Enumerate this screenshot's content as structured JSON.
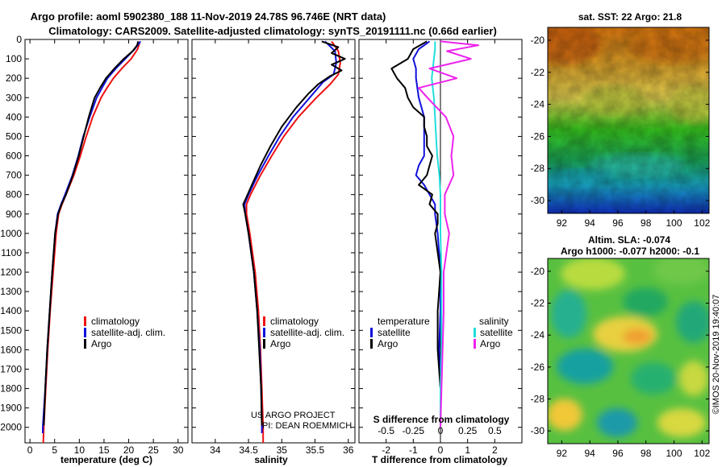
{
  "titles": {
    "line1": "Argo profile: aoml 5902380_188 11-Nov-2019 24.78S 96.746E (NRT data)",
    "line2": "Climatology: CARS2009. Satellite-adjusted climatology: synTS_20191111.nc (0.66d earlier)"
  },
  "credits": {
    "project": "US ARGO PROJECT",
    "pi": "PI: DEAN ROEMMICH",
    "imos": "©IMOS 20-Nov-2019 19:40:07"
  },
  "colors": {
    "climatology": "#ee1111",
    "satellite": "#1111dd",
    "argo": "#000000",
    "satellite_s": "#22dddd",
    "argo_s": "#ee22ee"
  },
  "chart_data": [
    {
      "id": "temperature",
      "type": "line",
      "xlabel": "temperature (deg C)",
      "ylabel": "",
      "xlim": [
        -1,
        32
      ],
      "ylim": [
        2080,
        0
      ],
      "xticks": [
        0,
        5,
        10,
        15,
        20,
        25,
        30
      ],
      "yticks": [
        0,
        100,
        200,
        300,
        400,
        500,
        600,
        700,
        800,
        900,
        1000,
        1100,
        1200,
        1300,
        1400,
        1500,
        1600,
        1700,
        1800,
        1900,
        2000
      ],
      "legend": [
        "climatology",
        "satellite-adj. clim.",
        "Argo"
      ],
      "series": [
        {
          "name": "climatology",
          "color": "#ee1111",
          "depth": [
            10,
            50,
            100,
            150,
            200,
            250,
            300,
            400,
            500,
            600,
            700,
            800,
            850,
            900,
            1000,
            1200,
            1400,
            1600,
            1800,
            2000,
            2080
          ],
          "values": [
            22.3,
            21.8,
            20.5,
            18.6,
            16.9,
            15.6,
            14.4,
            12.7,
            11.4,
            10.2,
            8.9,
            7.3,
            6.5,
            5.8,
            5.3,
            4.7,
            4.1,
            3.6,
            3.2,
            2.8,
            2.7
          ]
        },
        {
          "name": "satellite-adj. clim.",
          "color": "#1111dd",
          "depth": [
            10,
            50,
            100,
            150,
            200,
            250,
            300,
            400,
            500,
            600,
            700,
            800,
            850,
            900,
            1000,
            1200,
            1400,
            1600,
            1800,
            2000,
            2030
          ],
          "values": [
            22.4,
            21.2,
            19.3,
            17.4,
            15.7,
            14.6,
            13.5,
            12.1,
            10.8,
            9.8,
            8.6,
            7.1,
            6.3,
            5.6,
            5.1,
            4.5,
            4.0,
            3.5,
            3.1,
            2.6,
            2.6
          ]
        },
        {
          "name": "Argo",
          "color": "#000000",
          "depth": [
            10,
            30,
            60,
            100,
            150,
            200,
            250,
            300,
            350,
            400,
            500,
            600,
            700,
            800,
            850,
            900,
            1000,
            1200,
            1400,
            1600,
            1800,
            1990
          ],
          "values": [
            21.9,
            21.7,
            20.8,
            19.0,
            17.1,
            15.4,
            14.2,
            13.1,
            12.5,
            11.9,
            10.9,
            9.9,
            8.7,
            7.3,
            6.4,
            5.7,
            5.1,
            4.5,
            4.0,
            3.5,
            3.1,
            2.8
          ]
        }
      ]
    },
    {
      "id": "salinity",
      "type": "line",
      "xlabel": "salinity",
      "ylabel": "",
      "xlim": [
        33.65,
        36.1
      ],
      "ylim": [
        2080,
        0
      ],
      "xticks": [
        34,
        34.5,
        35,
        35.5,
        36
      ],
      "xticklabels": [
        "34",
        "34.5",
        "35",
        "35.5",
        "36"
      ],
      "legend": [
        "climatology",
        "satellite-adj. clim.",
        "Argo"
      ],
      "series": [
        {
          "name": "climatology",
          "color": "#ee1111",
          "depth": [
            10,
            60,
            120,
            180,
            230,
            300,
            400,
            500,
            600,
            700,
            800,
            850,
            900,
            1000,
            1200,
            1400,
            1600,
            1800,
            2000,
            2080
          ],
          "values": [
            35.75,
            35.85,
            35.88,
            35.85,
            35.73,
            35.52,
            35.25,
            35.03,
            34.85,
            34.68,
            34.53,
            34.47,
            34.47,
            34.52,
            34.6,
            34.65,
            34.68,
            34.7,
            34.72,
            34.72
          ]
        },
        {
          "name": "satellite-adj. clim.",
          "color": "#1111dd",
          "depth": [
            10,
            60,
            120,
            180,
            220,
            300,
            400,
            500,
            600,
            700,
            800,
            850,
            900,
            1000,
            1200,
            1400,
            1600,
            1800,
            2000,
            2030
          ],
          "values": [
            35.65,
            35.8,
            35.82,
            35.78,
            35.62,
            35.42,
            35.17,
            34.97,
            34.8,
            34.64,
            34.5,
            34.44,
            34.45,
            34.5,
            34.58,
            34.63,
            34.67,
            34.69,
            34.7,
            34.7
          ]
        },
        {
          "name": "Argo",
          "color": "#000000",
          "depth": [
            10,
            40,
            70,
            100,
            130,
            160,
            190,
            230,
            280,
            350,
            450,
            550,
            650,
            750,
            820,
            850,
            900,
            1000,
            1200,
            1400,
            1600,
            1800,
            1990
          ],
          "values": [
            35.6,
            35.85,
            35.75,
            35.95,
            35.75,
            35.9,
            35.72,
            35.55,
            35.4,
            35.22,
            35.0,
            34.83,
            34.68,
            34.55,
            34.46,
            34.42,
            34.45,
            34.5,
            34.58,
            34.63,
            34.66,
            34.69,
            34.7
          ]
        }
      ]
    },
    {
      "id": "differences",
      "type": "line",
      "xlabel": "T difference from climatology",
      "xlabel_top": "S difference from climatology",
      "xlim": [
        -3,
        3
      ],
      "ylim": [
        2080,
        0
      ],
      "xticks": [
        -2,
        -1,
        0,
        1,
        2
      ],
      "xticklabels": [
        "-2",
        "-1",
        "0",
        "1",
        "2"
      ],
      "sticks": [
        -0.5,
        -0.25,
        0,
        0.25,
        0.5
      ],
      "sticklabels": [
        "-0.5",
        "-0.25",
        "0",
        "0.25",
        "0.5"
      ],
      "legend_titles": {
        "left": "temperature",
        "right": "salinity"
      },
      "legend": [
        "satellite",
        "Argo",
        "satellite",
        "Argo"
      ],
      "series": [
        {
          "name": "T satellite",
          "color": "#1111dd",
          "depth": [
            10,
            50,
            100,
            150,
            200,
            300,
            400,
            500,
            600,
            650,
            700,
            750,
            800,
            850,
            900,
            1000,
            1200,
            1400,
            1600,
            1800,
            2000
          ],
          "values": [
            -0.4,
            -0.8,
            -1.0,
            -0.9,
            -0.9,
            -0.8,
            -0.6,
            -0.6,
            -0.6,
            -0.8,
            -0.9,
            -0.6,
            -0.4,
            -0.2,
            -0.2,
            -0.1,
            0.0,
            0.0,
            -0.05,
            0.0,
            0.0
          ]
        },
        {
          "name": "T Argo",
          "color": "#000000",
          "depth": [
            10,
            50,
            100,
            150,
            200,
            250,
            300,
            350,
            400,
            450,
            500,
            550,
            600,
            650,
            700,
            750,
            800,
            850,
            900,
            950,
            1000,
            1200,
            1400,
            1600,
            1800,
            2000
          ],
          "values": [
            -0.5,
            -1.0,
            -1.2,
            -1.8,
            -1.6,
            -1.3,
            -1.2,
            -1.0,
            -0.6,
            -0.6,
            -0.5,
            -0.5,
            -0.3,
            -0.4,
            -0.5,
            -0.8,
            -0.3,
            -0.4,
            -0.1,
            -0.1,
            -0.2,
            0.0,
            -0.1,
            -0.1,
            0.0,
            0.0
          ]
        },
        {
          "name": "S satellite",
          "color": "#22dddd",
          "depth": [
            10,
            50,
            100,
            150,
            200,
            300,
            400,
            500,
            600,
            700,
            800,
            900,
            1000,
            1200,
            1400,
            1600,
            1800,
            2000
          ],
          "values": [
            -0.05,
            -0.05,
            -0.06,
            -0.07,
            -0.08,
            -0.06,
            -0.05,
            -0.04,
            -0.03,
            -0.01,
            0.0,
            0.0,
            0.0,
            0.01,
            0.01,
            0.01,
            0.0,
            0.0
          ]
        },
        {
          "name": "S Argo",
          "color": "#ee22ee",
          "depth": [
            10,
            30,
            60,
            100,
            150,
            200,
            250,
            300,
            400,
            500,
            600,
            700,
            800,
            900,
            1000,
            1200,
            1400,
            1600,
            1800,
            2000
          ],
          "values": [
            0.0,
            0.35,
            0.06,
            0.28,
            -0.1,
            0.15,
            -0.2,
            -0.12,
            0.05,
            0.12,
            0.1,
            0.12,
            0.04,
            0.04,
            0.08,
            0.03,
            0.03,
            0.02,
            0.01,
            0.0
          ]
        }
      ]
    },
    {
      "id": "sst_map",
      "type": "heatmap",
      "title": "sat. SST: 22 Argo: 21.8",
      "xlim": [
        91,
        102.5
      ],
      "ylim": [
        -30.8,
        -19.2
      ],
      "xticks": [
        92,
        94,
        96,
        98,
        100,
        102
      ],
      "yticks": [
        -20,
        -22,
        -24,
        -26,
        -28,
        -30
      ]
    },
    {
      "id": "sla_map",
      "type": "heatmap",
      "title": "Altim. SLA: -0.074",
      "subtitle": "Argo h1000: -0.077 h2000: -0.1",
      "xlim": [
        91,
        102.5
      ],
      "ylim": [
        -30.8,
        -19.2
      ],
      "xticks": [
        92,
        94,
        96,
        98,
        100,
        102
      ],
      "yticks": [
        -20,
        -22,
        -24,
        -26,
        -28,
        -30
      ]
    }
  ]
}
